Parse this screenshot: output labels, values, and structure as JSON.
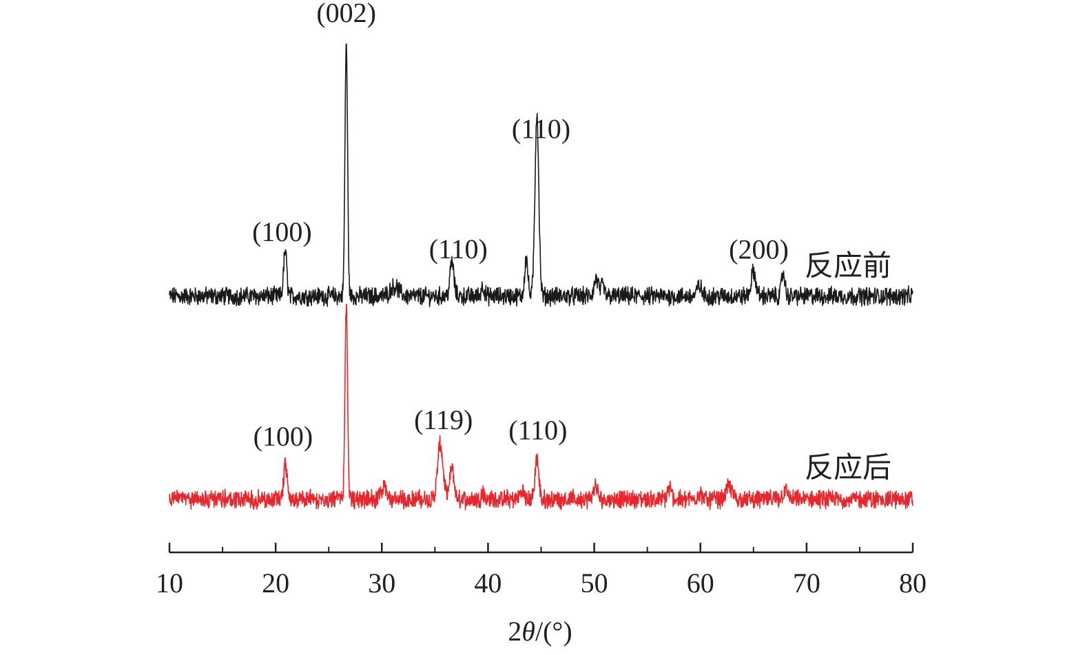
{
  "chart_data": {
    "type": "line",
    "xlabel_prefix": "2",
    "xlabel_symbol": "θ",
    "xlabel_suffix": "/(°)",
    "xlim": [
      10,
      80
    ],
    "x_ticks": [
      10,
      20,
      30,
      40,
      50,
      60,
      70,
      80
    ],
    "x_minor_ticks": [
      15,
      25,
      35,
      45,
      55,
      65,
      75
    ],
    "y_axis_shown": false,
    "grid": false,
    "legend": "none",
    "series": [
      {
        "name": "反应前",
        "color": "#1a1a1a",
        "baseline": 430,
        "noise": 22,
        "peaks": [
          {
            "x": 20.9,
            "height": 65,
            "width": 0.15
          },
          {
            "x": 26.65,
            "height": 370,
            "width": 0.12
          },
          {
            "x": 31.2,
            "height": 14,
            "width": 0.4
          },
          {
            "x": 36.6,
            "height": 50,
            "width": 0.18
          },
          {
            "x": 39.5,
            "height": 15,
            "width": 0.15
          },
          {
            "x": 43.6,
            "height": 55,
            "width": 0.15
          },
          {
            "x": 44.6,
            "height": 265,
            "width": 0.18
          },
          {
            "x": 50.2,
            "height": 25,
            "width": 0.2
          },
          {
            "x": 50.8,
            "height": 15,
            "width": 0.15
          },
          {
            "x": 59.9,
            "height": 15,
            "width": 0.2
          },
          {
            "x": 65.0,
            "height": 35,
            "width": 0.22
          },
          {
            "x": 67.8,
            "height": 35,
            "width": 0.15
          }
        ]
      },
      {
        "name": "反应后",
        "color": "#e8262b",
        "baseline": 725,
        "noise": 22,
        "peaks": [
          {
            "x": 20.9,
            "height": 55,
            "width": 0.15
          },
          {
            "x": 26.65,
            "height": 285,
            "width": 0.12
          },
          {
            "x": 30.2,
            "height": 20,
            "width": 0.2
          },
          {
            "x": 35.5,
            "height": 80,
            "width": 0.25
          },
          {
            "x": 36.6,
            "height": 45,
            "width": 0.2
          },
          {
            "x": 39.5,
            "height": 10,
            "width": 0.15
          },
          {
            "x": 43.2,
            "height": 12,
            "width": 0.2
          },
          {
            "x": 44.6,
            "height": 60,
            "width": 0.17
          },
          {
            "x": 50.1,
            "height": 20,
            "width": 0.18
          },
          {
            "x": 57.1,
            "height": 15,
            "width": 0.2
          },
          {
            "x": 59.9,
            "height": 10,
            "width": 0.2
          },
          {
            "x": 62.7,
            "height": 18,
            "width": 0.3
          },
          {
            "x": 68.0,
            "height": 12,
            "width": 0.25
          }
        ]
      }
    ],
    "annotations": [
      {
        "text": "(002)",
        "x": 26.65,
        "series": "反应前"
      },
      {
        "text": "(100)",
        "x": 20.6,
        "series": "反应前"
      },
      {
        "text": "(110)",
        "x": 37.2,
        "series": "反应前"
      },
      {
        "text": "(110)",
        "x": 45.0,
        "series": "反应前"
      },
      {
        "text": "(200)",
        "x": 65.5,
        "series": "反应前"
      },
      {
        "text": "(100)",
        "x": 20.7,
        "series": "反应后"
      },
      {
        "text": "(119)",
        "x": 35.8,
        "series": "反应后"
      },
      {
        "text": "(110)",
        "x": 44.7,
        "series": "反应后"
      }
    ]
  }
}
